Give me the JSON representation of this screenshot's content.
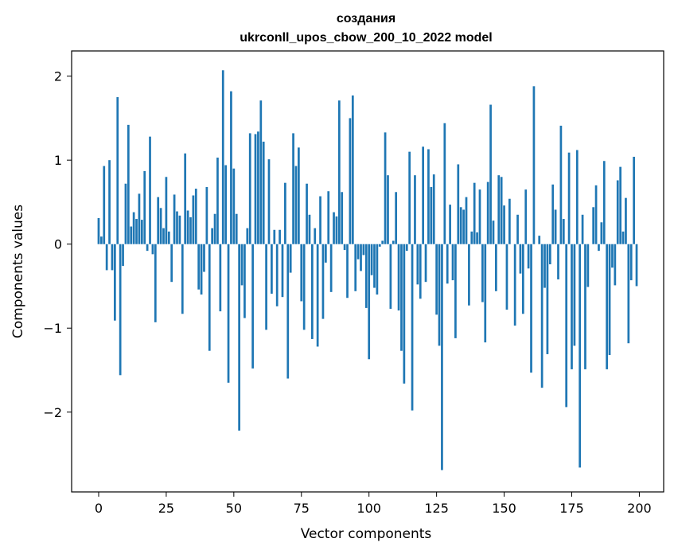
{
  "chart_data": {
    "type": "bar",
    "title_line1": "создания",
    "title_line2": "ukrconll_upos_cbow_200_10_2022 model",
    "xlabel": "Vector components",
    "ylabel": "Components values",
    "xlim": [
      -10,
      209
    ],
    "ylim": [
      -2.95,
      2.3
    ],
    "x_ticks": [
      0,
      25,
      50,
      75,
      100,
      125,
      150,
      175,
      200
    ],
    "y_ticks": [
      -2,
      -1,
      0,
      1,
      2
    ],
    "y_tick_labels": [
      "−2",
      "−1",
      "0",
      "1",
      "2"
    ],
    "bar_color": "#1f77b4",
    "values": [
      0.31,
      0.09,
      0.93,
      -0.31,
      1.0,
      -0.31,
      -0.91,
      1.75,
      -1.56,
      -0.26,
      0.72,
      1.42,
      0.21,
      0.38,
      0.3,
      0.6,
      0.29,
      0.87,
      -0.08,
      1.28,
      -0.12,
      -0.93,
      0.56,
      0.43,
      0.19,
      0.8,
      0.15,
      -0.45,
      0.59,
      0.39,
      0.34,
      -0.83,
      1.08,
      0.4,
      0.32,
      0.58,
      0.66,
      -0.54,
      -0.6,
      -0.33,
      0.68,
      -1.27,
      0.19,
      0.36,
      1.03,
      -0.8,
      2.07,
      0.94,
      -1.65,
      1.82,
      0.9,
      0.36,
      -2.22,
      -0.49,
      -0.88,
      0.19,
      1.32,
      -1.48,
      1.31,
      1.34,
      1.71,
      1.22,
      -1.02,
      1.01,
      -0.59,
      0.17,
      -0.74,
      0.17,
      -0.63,
      0.73,
      -1.6,
      -0.34,
      1.32,
      0.93,
      1.15,
      -0.68,
      -1.02,
      0.72,
      0.35,
      -1.13,
      0.19,
      -1.22,
      0.57,
      -0.89,
      -0.22,
      0.63,
      -0.57,
      0.38,
      0.33,
      1.71,
      0.62,
      -0.07,
      -0.64,
      1.5,
      1.77,
      -0.56,
      -0.18,
      -0.32,
      -0.13,
      -0.76,
      -1.37,
      -0.37,
      -0.52,
      -0.6,
      -0.03,
      0.04,
      1.33,
      0.82,
      -0.77,
      0.04,
      0.62,
      -0.79,
      -1.27,
      -1.66,
      -0.08,
      1.1,
      -1.98,
      0.82,
      -0.48,
      -0.65,
      1.16,
      -0.45,
      1.13,
      0.68,
      0.83,
      -0.84,
      -1.21,
      -2.69,
      1.44,
      -0.47,
      0.47,
      -0.43,
      -1.12,
      0.95,
      0.44,
      0.41,
      0.56,
      -0.73,
      0.15,
      0.73,
      0.14,
      0.65,
      -0.69,
      -1.17,
      0.74,
      1.66,
      0.28,
      -0.56,
      0.82,
      0.8,
      0.46,
      -0.78,
      0.54,
      0.0,
      -0.97,
      0.35,
      -0.35,
      -0.83,
      0.65,
      -0.29,
      -1.53,
      1.88,
      0.0,
      0.1,
      -1.71,
      -0.52,
      -1.31,
      -0.24,
      0.71,
      0.41,
      -0.42,
      1.41,
      0.3,
      -1.94,
      1.09,
      -1.49,
      -1.21,
      1.12,
      -2.66,
      0.35,
      -1.49,
      -0.51,
      0.0,
      0.44,
      0.7,
      -0.08,
      0.26,
      0.99,
      -1.49,
      -1.32,
      -0.28,
      -0.49,
      0.76,
      0.92,
      0.15,
      0.55,
      -1.18,
      -0.43,
      1.04,
      -0.5
    ]
  }
}
